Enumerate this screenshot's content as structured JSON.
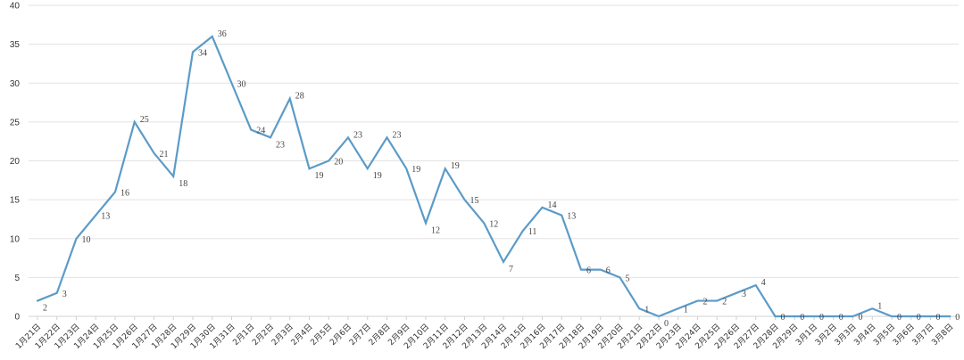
{
  "chart_data": {
    "type": "line",
    "title": "",
    "xlabel": "",
    "ylabel": "",
    "ylim": [
      0,
      40
    ],
    "yticks": [
      0,
      5,
      10,
      15,
      20,
      25,
      30,
      35,
      40
    ],
    "grid": true,
    "legend": "none",
    "line_color": "#5b9bc8",
    "categories": [
      "1月21日",
      "1月22日",
      "1月23日",
      "1月24日",
      "1月25日",
      "1月26日",
      "1月27日",
      "1月28日",
      "1月29日",
      "1月30日",
      "1月31日",
      "2月1日",
      "2月2日",
      "2月3日",
      "2月4日",
      "2月5日",
      "2月6日",
      "2月7日",
      "2月8日",
      "2月9日",
      "2月10日",
      "2月11日",
      "2月12日",
      "2月13日",
      "2月14日",
      "2月15日",
      "2月16日",
      "2月17日",
      "2月18日",
      "2月19日",
      "2月20日",
      "2月21日",
      "2月22日",
      "2月23日",
      "2月24日",
      "2月25日",
      "2月26日",
      "2月27日",
      "2月28日",
      "2月29日",
      "3月1日",
      "3月2日",
      "3月3日",
      "3月4日",
      "3月5日",
      "3月6日",
      "3月7日",
      "3月8日"
    ],
    "series": [
      {
        "name": "",
        "values": [
          2,
          3,
          10,
          13,
          16,
          25,
          21,
          18,
          34,
          36,
          30,
          24,
          23,
          28,
          19,
          20,
          23,
          19,
          23,
          19,
          12,
          19,
          15,
          12,
          7,
          11,
          14,
          13,
          6,
          6,
          5,
          1,
          0,
          1,
          2,
          2,
          3,
          4,
          0,
          0,
          0,
          0,
          0,
          1,
          0,
          0,
          0,
          0
        ]
      }
    ]
  }
}
